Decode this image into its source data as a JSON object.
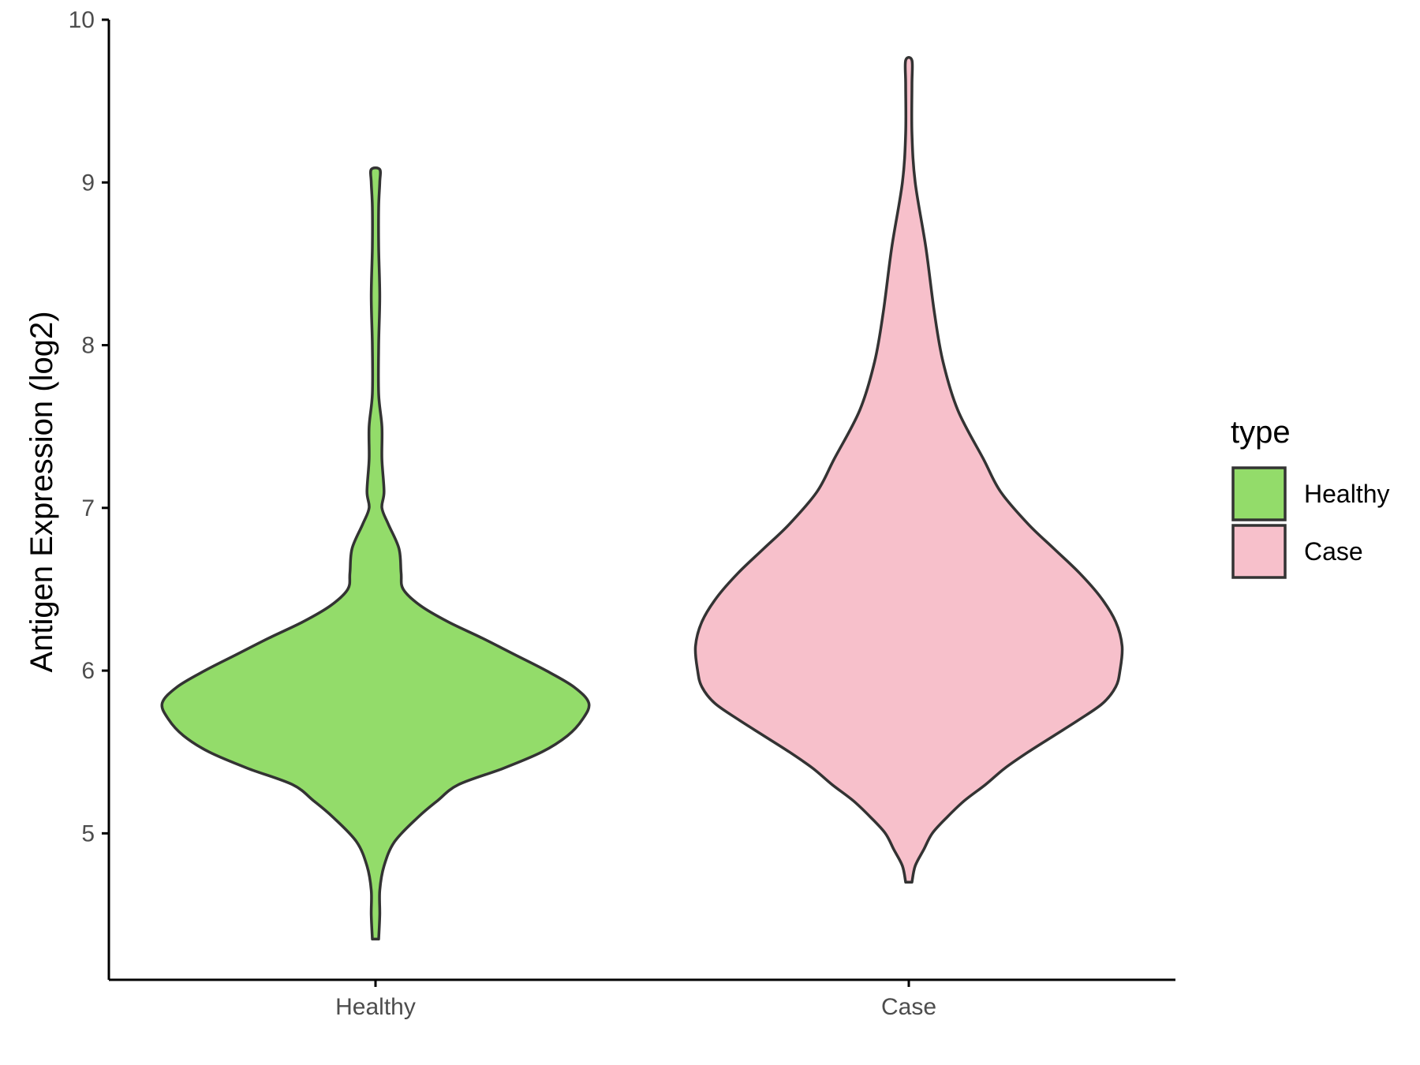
{
  "chart_data": {
    "type": "violin",
    "title": "",
    "xlabel": "",
    "ylabel": "Antigen Expression (log2)",
    "ylim": [
      4.1,
      10.0
    ],
    "yticks": [
      5,
      6,
      7,
      8,
      9,
      10
    ],
    "categories": [
      "Healthy",
      "Case"
    ],
    "grid": false,
    "legend": {
      "title": "type",
      "position": "right",
      "entries": [
        {
          "label": "Healthy",
          "color": "#93dc6a"
        },
        {
          "label": "Case",
          "color": "#f7c0cb"
        }
      ]
    },
    "series": [
      {
        "name": "Healthy",
        "color": "#93dc6a",
        "min": 4.35,
        "max": 9.08,
        "density_profile": [
          [
            4.35,
            0.01
          ],
          [
            4.5,
            0.02
          ],
          [
            4.65,
            0.02
          ],
          [
            4.8,
            0.04
          ],
          [
            4.95,
            0.09
          ],
          [
            5.1,
            0.2
          ],
          [
            5.2,
            0.29
          ],
          [
            5.3,
            0.39
          ],
          [
            5.4,
            0.6
          ],
          [
            5.5,
            0.78
          ],
          [
            5.6,
            0.9
          ],
          [
            5.7,
            0.97
          ],
          [
            5.8,
            1.0
          ],
          [
            5.9,
            0.93
          ],
          [
            6.0,
            0.8
          ],
          [
            6.1,
            0.65
          ],
          [
            6.2,
            0.5
          ],
          [
            6.3,
            0.34
          ],
          [
            6.4,
            0.21
          ],
          [
            6.5,
            0.13
          ],
          [
            6.6,
            0.12
          ],
          [
            6.75,
            0.11
          ],
          [
            6.9,
            0.06
          ],
          [
            7.0,
            0.03
          ],
          [
            7.1,
            0.04
          ],
          [
            7.3,
            0.03
          ],
          [
            7.5,
            0.03
          ],
          [
            7.7,
            0.01
          ],
          [
            8.0,
            0.01
          ],
          [
            8.3,
            0.02
          ],
          [
            8.6,
            0.01
          ],
          [
            8.85,
            0.01
          ],
          [
            9.0,
            0.02
          ],
          [
            9.08,
            0.02
          ]
        ]
      },
      {
        "name": "Case",
        "color": "#f7c0cb",
        "min": 4.7,
        "max": 9.75,
        "density_profile": [
          [
            4.7,
            0.0
          ],
          [
            4.8,
            0.03
          ],
          [
            4.9,
            0.07
          ],
          [
            5.0,
            0.11
          ],
          [
            5.1,
            0.18
          ],
          [
            5.2,
            0.26
          ],
          [
            5.3,
            0.36
          ],
          [
            5.4,
            0.45
          ],
          [
            5.5,
            0.56
          ],
          [
            5.6,
            0.68
          ],
          [
            5.7,
            0.8
          ],
          [
            5.8,
            0.91
          ],
          [
            5.9,
            0.97
          ],
          [
            6.0,
            0.99
          ],
          [
            6.15,
            1.0
          ],
          [
            6.3,
            0.97
          ],
          [
            6.45,
            0.9
          ],
          [
            6.6,
            0.8
          ],
          [
            6.75,
            0.68
          ],
          [
            6.9,
            0.56
          ],
          [
            7.1,
            0.43
          ],
          [
            7.3,
            0.35
          ],
          [
            7.6,
            0.23
          ],
          [
            7.9,
            0.16
          ],
          [
            8.2,
            0.12
          ],
          [
            8.6,
            0.08
          ],
          [
            9.0,
            0.03
          ],
          [
            9.3,
            0.01
          ],
          [
            9.6,
            0.01
          ],
          [
            9.75,
            0.01
          ]
        ]
      }
    ]
  }
}
